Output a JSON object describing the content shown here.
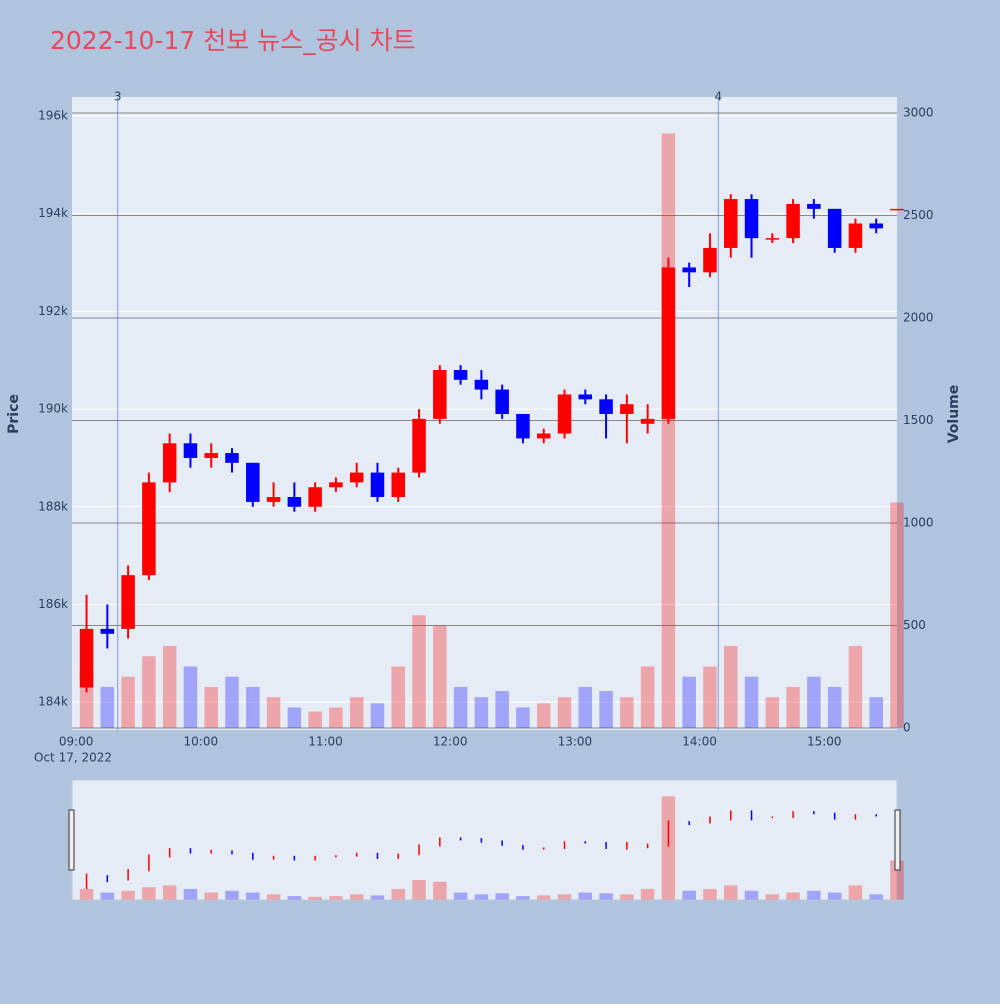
{
  "chart_data": {
    "type": "candlestick",
    "title": "2022-10-17 천보 뉴스_공시 차트",
    "y_label": "Price",
    "y2_label": "Volume",
    "x_date_label": "Oct 17, 2022",
    "up_color": "#ff0000",
    "down_color": "#0000ff",
    "x": [
      "09:00",
      "09:10",
      "09:20",
      "09:30",
      "09:40",
      "09:50",
      "10:00",
      "10:10",
      "10:20",
      "10:30",
      "10:40",
      "10:50",
      "11:00",
      "11:10",
      "11:20",
      "11:30",
      "11:40",
      "11:50",
      "12:00",
      "12:10",
      "12:20",
      "12:30",
      "12:40",
      "12:50",
      "13:00",
      "13:10",
      "13:20",
      "13:30",
      "13:40",
      "13:50",
      "14:00",
      "14:10",
      "14:20",
      "14:30",
      "14:40",
      "14:50",
      "15:00",
      "15:10",
      "15:20",
      "15:30"
    ],
    "open": [
      184300,
      185500,
      185500,
      186600,
      188500,
      189300,
      189000,
      189100,
      188900,
      188100,
      188200,
      188000,
      188400,
      188500,
      188700,
      188200,
      188700,
      189800,
      190800,
      190600,
      190400,
      189900,
      189400,
      189500,
      190300,
      190200,
      189900,
      189700,
      189800,
      192900,
      192800,
      193300,
      194300,
      193500,
      193500,
      194200,
      194100,
      193300,
      193800,
      194100
    ],
    "high": [
      186200,
      186000,
      186800,
      188700,
      189500,
      189500,
      189300,
      189200,
      188900,
      188500,
      188500,
      188500,
      188600,
      188900,
      188900,
      188800,
      190000,
      190900,
      190900,
      190800,
      190500,
      189900,
      189600,
      190400,
      190400,
      190300,
      190300,
      190100,
      193100,
      193000,
      193600,
      194400,
      194400,
      193600,
      194300,
      194300,
      194100,
      193900,
      193900,
      194100
    ],
    "low": [
      184200,
      185100,
      185300,
      186500,
      188300,
      188800,
      188800,
      188700,
      188000,
      188000,
      187900,
      187900,
      188300,
      188400,
      188100,
      188100,
      188600,
      189700,
      190500,
      190200,
      189800,
      189300,
      189300,
      189400,
      190100,
      189400,
      189300,
      189500,
      189700,
      192500,
      192700,
      193100,
      193100,
      193400,
      193400,
      193900,
      193200,
      193200,
      193600,
      194100
    ],
    "close": [
      185500,
      185400,
      186600,
      188500,
      189300,
      189000,
      189100,
      188900,
      188100,
      188200,
      188000,
      188400,
      188500,
      188700,
      188200,
      188700,
      189800,
      190800,
      190600,
      190400,
      189900,
      189400,
      189500,
      190300,
      190200,
      189900,
      190100,
      189800,
      192900,
      192800,
      193300,
      194300,
      193500,
      193500,
      194200,
      194100,
      193300,
      193800,
      193700,
      194100
    ],
    "volume": [
      300,
      200,
      250,
      350,
      400,
      300,
      200,
      250,
      200,
      150,
      100,
      80,
      100,
      150,
      120,
      300,
      550,
      500,
      200,
      150,
      180,
      100,
      120,
      150,
      200,
      180,
      150,
      300,
      2900,
      250,
      300,
      400,
      250,
      150,
      200,
      250,
      200,
      400,
      150,
      1100
    ],
    "events": [
      {
        "time": "09:20",
        "label": "3"
      },
      {
        "time": "14:09",
        "label": "4"
      }
    ],
    "xlim": [
      "08:58",
      "15:35"
    ],
    "xticks": [
      "09:00",
      "10:00",
      "11:00",
      "12:00",
      "13:00",
      "14:00",
      "15:00"
    ],
    "ylim": [
      183430,
      196390
    ],
    "yticks": [
      {
        "value": 184000,
        "label": "184k"
      },
      {
        "value": 186000,
        "label": "186k"
      },
      {
        "value": 188000,
        "label": "188k"
      },
      {
        "value": 190000,
        "label": "190k"
      },
      {
        "value": 192000,
        "label": "192k"
      },
      {
        "value": 194000,
        "label": "194k"
      },
      {
        "value": 196000,
        "label": "196k"
      }
    ],
    "y2lim": [
      -10,
      3078
    ],
    "y2ticks": [
      0,
      500,
      1000,
      1500,
      2000,
      2500,
      3000
    ]
  }
}
